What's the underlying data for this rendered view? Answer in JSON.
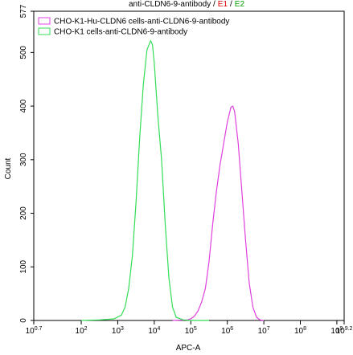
{
  "chart_data": {
    "type": "line",
    "title": [
      {
        "text": "anti-CLDN6-9-antibody /",
        "color": "#000000"
      },
      {
        "text": "E1",
        "color": "#e00000"
      },
      {
        "text": "/",
        "color": "#000000"
      },
      {
        "text": "E2",
        "color": "#00a000"
      }
    ],
    "x_label": "APC-A",
    "y_label": "Count",
    "x_scale": "log",
    "xlim": [
      5.011872,
      1584893192
    ],
    "xticks": [
      {
        "value": 5.011872,
        "label": "10",
        "power": "0.7"
      },
      {
        "value": 100,
        "label": "10",
        "power": "2"
      },
      {
        "value": 1000,
        "label": "10",
        "power": "3"
      },
      {
        "value": 10000,
        "label": "10",
        "power": "4"
      },
      {
        "value": 100000,
        "label": "10",
        "power": "5"
      },
      {
        "value": 1000000,
        "label": "10",
        "power": "6"
      },
      {
        "value": 10000000,
        "label": "10",
        "power": "7"
      },
      {
        "value": 100000000,
        "label": "10",
        "power": "8"
      },
      {
        "value": 1000000000,
        "label": "10",
        "power": "9"
      },
      {
        "value": 1584893192,
        "label": "10",
        "power": "9.2"
      }
    ],
    "ylim": [
      0,
      577
    ],
    "yticks": [
      0,
      100,
      200,
      300,
      400,
      500,
      577
    ],
    "legend": "upper-left",
    "series": [
      {
        "name": "CHO-K1-Hu-CLDN6 cells-anti-CLDN6-9-antibody",
        "color": "#e040e0",
        "x": [
          31623,
          79433,
          100000,
          125893,
          158489,
          199526,
          251189,
          316228,
          398107,
          501187,
          630957,
          794328,
          1000000,
          1258925,
          1412538,
          1584893,
          1995262,
          2511886,
          3162278,
          3981072,
          5011872,
          6309573,
          7943282,
          10000000
        ],
        "values": [
          0,
          1,
          3,
          8,
          18,
          35,
          60,
          110,
          180,
          240,
          290,
          330,
          370,
          398,
          400,
          390,
          330,
          240,
          150,
          70,
          25,
          6,
          1,
          0
        ]
      },
      {
        "name": "CHO-K1 cells-anti-CLDN6-9-antibody",
        "color": "#33dd55",
        "x": [
          100,
          316,
          794,
          1259,
          1585,
          1995,
          2512,
          3162,
          3981,
          5012,
          6310,
          7943,
          8913,
          10000,
          12589,
          15849,
          19953,
          25119,
          31623,
          39811,
          63096,
          100000,
          316228
        ],
        "values": [
          0,
          1,
          3,
          10,
          25,
          60,
          120,
          220,
          340,
          440,
          505,
          522,
          515,
          480,
          380,
          300,
          180,
          80,
          25,
          6,
          1,
          0,
          0
        ]
      }
    ]
  }
}
